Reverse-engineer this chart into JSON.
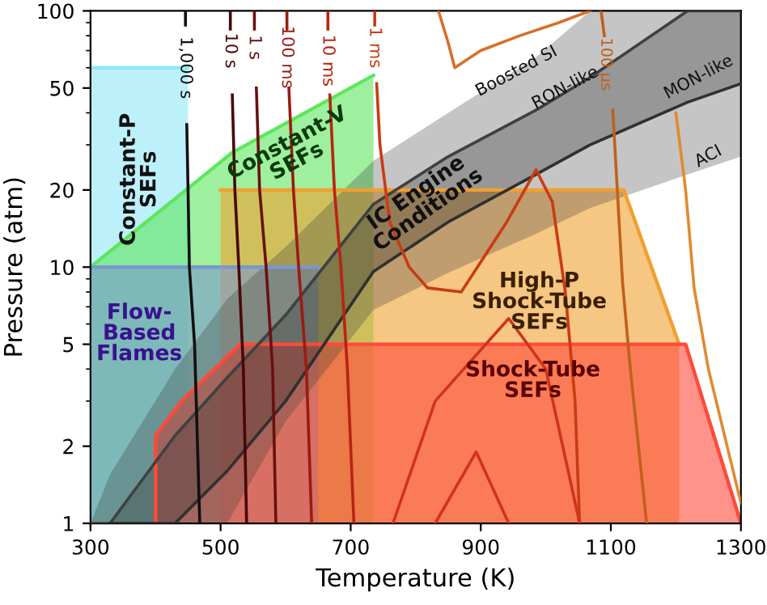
{
  "chart_data": {
    "type": "area",
    "xlabel": "Temperature (K)",
    "ylabel": "Pressure (atm)",
    "log": "y",
    "xlim": [
      300,
      1300
    ],
    "ylim": [
      1,
      100
    ],
    "xticks": [
      300,
      500,
      700,
      900,
      1100,
      1300
    ],
    "yticks": [
      1,
      2,
      5,
      10,
      20,
      50,
      100
    ],
    "legend": false,
    "series": [
      {
        "color": "#8fe8f8",
        "x": [
          300,
          450
        ],
        "values": [
          60,
          60
        ]
      },
      {
        "color": "#5ee65e",
        "x": [
          300,
          518,
          735
        ],
        "values": [
          10,
          28,
          56
        ]
      },
      {
        "color": "#f0a030",
        "x": [
          500,
          1120,
          1205
        ],
        "values": [
          20,
          20,
          5
        ]
      },
      {
        "color": "#7a98cc",
        "x": [
          300,
          650
        ],
        "values": [
          10,
          10
        ]
      },
      {
        "color": "#ff4a3a",
        "x": [
          400,
          400,
          440,
          530,
          1215,
          1300
        ],
        "values": [
          1,
          2.2,
          3,
          5,
          5,
          1
        ]
      },
      {
        "type": "line",
        "color": "#404040",
        "x": [
          300,
          330,
          430,
          510,
          600,
          735,
          850,
          985,
          1068,
          1218,
          1300
        ],
        "values": [
          1,
          1,
          2.2,
          3.7,
          6.5,
          17.6,
          27,
          41,
          55,
          100,
          100
        ],
        "upper": [
          1,
          1.55,
          4,
          7.5,
          12,
          26,
          40,
          66,
          100,
          100,
          100
        ],
        "lower": [
          1,
          1,
          1,
          1,
          2.5,
          6.8,
          9.5,
          13.5,
          17,
          23,
          27
        ]
      },
      {
        "type": "line",
        "color": "#303030",
        "x": [
          330,
          430,
          510,
          600,
          735,
          850,
          985,
          1068,
          1218,
          1300
        ],
        "values": [
          1,
          1,
          1.6,
          3,
          9.6,
          15,
          23,
          30,
          44,
          52
        ],
        "upper": [
          1,
          2.2,
          3.7,
          6.5,
          17.6,
          27,
          41,
          55,
          100,
          100
        ],
        "lower": [
          1,
          1,
          1.6,
          3,
          9.6,
          15,
          23,
          30,
          44,
          52
        ]
      },
      {
        "type": "line",
        "color": "#111111",
        "x": [
          446,
          446,
          447,
          448,
          450,
          452,
          460,
          468
        ],
        "values": [
          100,
          88,
          null,
          36,
          20,
          10,
          5,
          1
        ]
      },
      {
        "type": "line",
        "color": "#4a0808",
        "x": [
          515,
          515,
          516,
          518,
          522,
          528,
          535,
          540
        ],
        "values": [
          100,
          85,
          null,
          47,
          20,
          10,
          4,
          1
        ]
      },
      {
        "type": "line",
        "color": "#6a1010",
        "x": [
          552,
          552,
          553,
          555,
          560,
          570,
          580,
          585
        ],
        "values": [
          100,
          85,
          null,
          50,
          20,
          10,
          4,
          1
        ]
      },
      {
        "type": "line",
        "color": "#9a1c12",
        "x": [
          602,
          602,
          603,
          605,
          612,
          620,
          632,
          640
        ],
        "values": [
          100,
          85,
          null,
          50,
          20,
          10,
          4,
          1
        ]
      },
      {
        "type": "line",
        "color": "#b82414",
        "x": [
          665,
          665,
          666,
          668,
          675,
          685,
          695,
          705
        ],
        "values": [
          100,
          85,
          null,
          47,
          20,
          10,
          4,
          1
        ]
      },
      {
        "type": "line",
        "color": "#c83c14",
        "x": [
          737,
          737,
          738,
          740,
          745,
          760,
          790,
          818,
          870,
          940,
          985,
          1010,
          1030,
          1045,
          1052
        ],
        "values": [
          100,
          88,
          null,
          52,
          30,
          15,
          10,
          8.3,
          8,
          15,
          24,
          18,
          8,
          3,
          1
        ]
      },
      {
        "type": "line",
        "color": "#d03418",
        "x": [
          765,
          830,
          943,
          1000,
          1052
        ],
        "values": [
          1,
          3,
          6.3,
          4,
          1
        ]
      },
      {
        "type": "line",
        "color": "#d03418",
        "x": [
          830,
          893,
          943
        ],
        "values": [
          1,
          1.9,
          1
        ]
      },
      {
        "type": "line",
        "color": "#c0601c",
        "x": [
          1085,
          1090,
          1092,
          1103,
          1118,
          1130,
          1155
        ],
        "values": [
          100,
          80,
          null,
          41,
          8.7,
          4,
          1
        ]
      },
      {
        "type": "line",
        "color": "#d8702a",
        "x": [
          835,
          850,
          860,
          900,
          960,
          1020,
          1068
        ],
        "values": [
          100,
          75,
          60,
          70,
          80,
          90,
          100
        ]
      },
      {
        "type": "line",
        "color": "#e08a30",
        "x": [
          1200,
          1215,
          1228,
          1250,
          1300
        ],
        "values": [
          40,
          20,
          8.3,
          4,
          1.2
        ]
      }
    ],
    "annotations": [
      "Constant-P\nSEFs",
      "Constant-V\nSEFs",
      "Flow-\nBased\nFlames",
      "IC Engine\nConditions",
      "High-P\nShock-Tube\nSEFs",
      "Shock-Tube\nSEFs",
      "Boosted SI",
      "RON-like",
      "MON-like",
      "ACI",
      "1,000 s",
      "10 s",
      "1 s",
      "100 ms",
      "10 ms",
      "1 ms",
      "100 μs"
    ]
  }
}
